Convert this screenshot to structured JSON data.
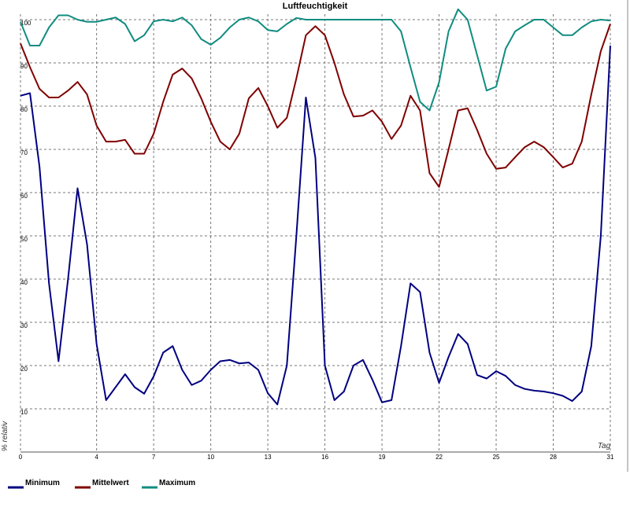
{
  "chart_data": {
    "type": "line",
    "title": "Luftfeuchtigkeit",
    "x_label": "Tag",
    "y_label": "% relativ",
    "x": [
      0,
      0.5,
      1,
      1.5,
      2,
      2.5,
      3,
      3.5,
      4,
      4.5,
      5,
      5.5,
      6,
      6.5,
      7,
      7.5,
      8,
      8.5,
      9,
      9.5,
      10,
      10.5,
      11,
      11.5,
      12,
      12.5,
      13,
      13.5,
      14,
      14.5,
      15,
      15.5,
      16,
      16.5,
      17,
      17.5,
      18,
      18.5,
      19,
      19.5,
      20,
      20.5,
      21,
      21.5,
      22,
      22.5,
      23,
      23.5,
      24,
      24.5,
      25,
      25.5,
      26,
      26.5,
      27,
      27.5,
      28,
      28.5,
      29,
      29.5,
      30,
      30.5,
      31
    ],
    "series": [
      {
        "name": "Minimum",
        "color": "#000080",
        "values": [
          82.4,
          83,
          66,
          39,
          21,
          40,
          61,
          48,
          25,
          12,
          15,
          18,
          15,
          13.5,
          17.5,
          23,
          24.5,
          19,
          15.5,
          16.5,
          19,
          21,
          21.3,
          20.5,
          20.7,
          19,
          13.6,
          11,
          20,
          50,
          82,
          68,
          20,
          12,
          14,
          20,
          21.3,
          16.7,
          11.5,
          12,
          24.5,
          39,
          37,
          23,
          16,
          22,
          27.3,
          25,
          17.8,
          17,
          18.7,
          17.6,
          15.5,
          14.6,
          14.2,
          14,
          13.6,
          13,
          11.8,
          14,
          24.5,
          50,
          94
        ]
      },
      {
        "name": "Mittelwert",
        "color": "#800000",
        "values": [
          94.5,
          89,
          84,
          82,
          82,
          83.6,
          85.6,
          82.7,
          75.5,
          71.8,
          71.8,
          72.2,
          69,
          69,
          73.6,
          81,
          87.3,
          88.7,
          86.4,
          81.8,
          76.4,
          71.8,
          70,
          73.6,
          81.8,
          84.2,
          80,
          75,
          77.3,
          86.4,
          96.4,
          98.5,
          96.4,
          90,
          82.7,
          77.6,
          77.8,
          79,
          76.4,
          72.4,
          75.5,
          82.4,
          79,
          64.5,
          61.3,
          70,
          79,
          79.5,
          74.5,
          69,
          65.5,
          65.8,
          68.2,
          70.5,
          71.8,
          70.5,
          68.2,
          65.8,
          66.7,
          71.8,
          82.7,
          92.7,
          99
        ]
      },
      {
        "name": "Maximum",
        "color": "#108c80",
        "values": [
          99.5,
          94,
          94,
          98.2,
          101,
          101,
          100,
          99.5,
          99.5,
          100,
          100.5,
          99,
          95,
          96.4,
          99.6,
          100,
          99.6,
          100.5,
          98.7,
          95.5,
          94.2,
          95.8,
          98.2,
          100,
          100.5,
          99.6,
          97.6,
          97.3,
          99,
          100.4,
          100,
          100,
          100,
          100,
          100,
          100,
          100,
          100,
          100,
          100,
          97.3,
          89,
          81,
          79,
          85.5,
          97.3,
          102.4,
          100,
          91.8,
          83.6,
          84.5,
          93.3,
          97.3,
          98.7,
          100,
          100,
          98.2,
          96.4,
          96.4,
          98.2,
          99.6,
          100,
          99.8
        ]
      }
    ],
    "xlim": [
      0,
      31
    ],
    "xticks": [
      0,
      4,
      7,
      10,
      13,
      16,
      19,
      22,
      25,
      28,
      31
    ],
    "ylim": [
      0,
      100
    ],
    "yticks": [
      10,
      20,
      30,
      40,
      50,
      60,
      70,
      80,
      90,
      100
    ],
    "grid": true,
    "legend": "bottom"
  }
}
